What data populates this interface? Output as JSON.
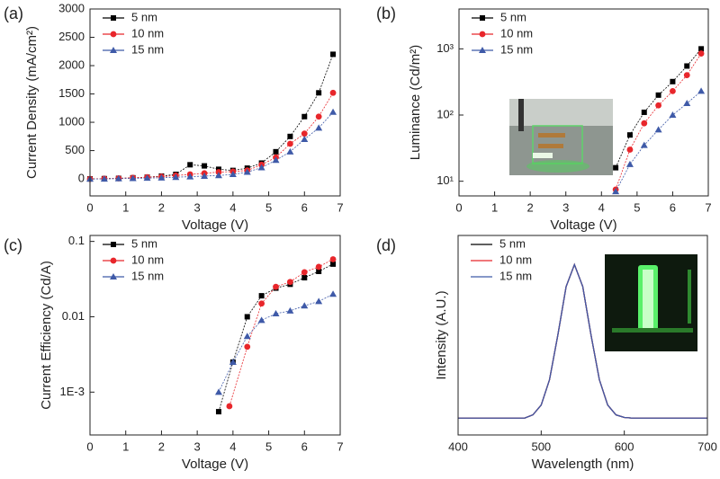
{
  "chart_data": [
    {
      "type": "line",
      "label": "(a)",
      "x_label": "Voltage (V)",
      "y_label": "Current Density (mA/cm²)",
      "x": [
        0,
        0.4,
        0.8,
        1.2,
        1.6,
        2.0,
        2.4,
        2.8,
        3.2,
        3.6,
        4.0,
        4.4,
        4.8,
        5.2,
        5.6,
        6.0,
        6.4,
        6.8
      ],
      "series": [
        {
          "name": "5 nm",
          "color": "#000000",
          "marker": "square",
          "values": [
            0,
            5,
            10,
            20,
            30,
            50,
            80,
            250,
            230,
            170,
            150,
            190,
            280,
            480,
            750,
            1100,
            1520,
            2200
          ]
        },
        {
          "name": "10 nm",
          "color": "#e8262b",
          "marker": "circle",
          "values": [
            0,
            5,
            10,
            20,
            30,
            40,
            60,
            80,
            100,
            120,
            130,
            150,
            250,
            380,
            620,
            800,
            1100,
            1520
          ]
        },
        {
          "name": "15 nm",
          "color": "#3f5aa8",
          "marker": "triangle",
          "values": [
            0,
            0,
            5,
            10,
            15,
            20,
            30,
            40,
            50,
            60,
            80,
            120,
            200,
            330,
            480,
            700,
            900,
            1180
          ]
        }
      ],
      "xlim": [
        0,
        7
      ],
      "xticks": [
        0,
        1,
        2,
        3,
        4,
        5,
        6,
        7
      ],
      "ylim": [
        -300,
        3000
      ],
      "yticks": [
        0,
        500,
        1000,
        1500,
        2000,
        2500,
        3000
      ],
      "legend": "upper left"
    },
    {
      "type": "line",
      "label": "(b)",
      "x_label": "Voltage (V)",
      "y_label": "Luminance (Cd/m²)",
      "log_y": true,
      "x": [
        4.4,
        4.8,
        5.2,
        5.6,
        6.0,
        6.4,
        6.8
      ],
      "series": [
        {
          "name": "5 nm",
          "color": "#000000",
          "marker": "square",
          "values": [
            16,
            50,
            110,
            200,
            320,
            550,
            1000
          ]
        },
        {
          "name": "10 nm",
          "color": "#e8262b",
          "marker": "circle",
          "values": [
            7.5,
            30,
            75,
            140,
            230,
            400,
            850
          ]
        },
        {
          "name": "15 nm",
          "color": "#3f5aa8",
          "marker": "triangle",
          "values": [
            7,
            18,
            35,
            60,
            100,
            150,
            230
          ]
        }
      ],
      "xlim": [
        0,
        7
      ],
      "xticks": [
        0,
        1,
        2,
        3,
        4,
        5,
        6,
        7
      ],
      "ylim": [
        6,
        4000
      ],
      "yticks": [
        {
          "value": 10,
          "label": "10¹"
        },
        {
          "value": 100,
          "label": "10²"
        },
        {
          "value": 1000,
          "label": "10³"
        }
      ],
      "legend": "upper left"
    },
    {
      "type": "line",
      "label": "(c)",
      "x_label": "Voltage (V)",
      "y_label": "Current Efficiency (Cd/A)",
      "log_y": true,
      "series": [
        {
          "name": "5 nm",
          "color": "#000000",
          "marker": "square",
          "x": [
            3.6,
            4.0,
            4.4,
            4.8,
            5.2,
            5.6,
            6.0,
            6.4,
            6.8
          ],
          "values": [
            0.00055,
            0.0025,
            0.01,
            0.019,
            0.024,
            0.027,
            0.033,
            0.04,
            0.05
          ]
        },
        {
          "name": "10 nm",
          "color": "#e8262b",
          "marker": "circle",
          "x": [
            3.9,
            4.4,
            4.8,
            5.2,
            5.6,
            6.0,
            6.4,
            6.8
          ],
          "values": [
            0.00065,
            0.004,
            0.015,
            0.025,
            0.029,
            0.039,
            0.046,
            0.058
          ]
        },
        {
          "name": "15 nm",
          "color": "#3f5aa8",
          "marker": "triangle",
          "x": [
            3.6,
            4.0,
            4.4,
            4.8,
            5.2,
            5.6,
            6.0,
            6.4,
            6.8
          ],
          "values": [
            0.001,
            0.0025,
            0.0055,
            0.009,
            0.011,
            0.012,
            0.014,
            0.016,
            0.02
          ]
        }
      ],
      "xlim": [
        0,
        7
      ],
      "xticks": [
        0,
        1,
        2,
        3,
        4,
        5,
        6,
        7
      ],
      "ylim": [
        0.00027,
        0.12
      ],
      "yticks": [
        {
          "value": 0.001,
          "label": "1E-3"
        },
        0.01,
        0.1
      ],
      "legend": "upper left"
    },
    {
      "type": "line",
      "label": "(d)",
      "x_label": "Wavelength (nm)",
      "y_label": "Intensity (A.U.)",
      "x": [
        400,
        410,
        420,
        430,
        440,
        450,
        460,
        470,
        480,
        490,
        500,
        510,
        520,
        530,
        540,
        550,
        560,
        570,
        580,
        590,
        600,
        610,
        620,
        630,
        640,
        650,
        660,
        670,
        680,
        690,
        700
      ],
      "series": [
        {
          "name": "5 nm",
          "color": "#000000",
          "values": [
            0,
            0,
            0,
            0,
            0,
            0,
            0,
            0,
            0,
            0.021,
            0.085,
            0.25,
            0.54,
            0.857,
            1,
            0.857,
            0.54,
            0.25,
            0.085,
            0.021,
            0.004,
            0,
            0,
            0,
            0,
            0,
            0,
            0,
            0,
            0,
            0
          ]
        },
        {
          "name": "10 nm",
          "color": "#e8262b",
          "values": [
            0,
            0,
            0,
            0,
            0,
            0,
            0,
            0,
            0,
            0.021,
            0.085,
            0.25,
            0.54,
            0.857,
            1,
            0.857,
            0.54,
            0.25,
            0.085,
            0.021,
            0.004,
            0,
            0,
            0,
            0,
            0,
            0,
            0,
            0,
            0,
            0
          ]
        },
        {
          "name": "15 nm",
          "color": "#3f5aa8",
          "values": [
            0,
            0,
            0,
            0,
            0,
            0,
            0,
            0,
            0,
            0.021,
            0.085,
            0.25,
            0.54,
            0.857,
            1,
            0.857,
            0.54,
            0.25,
            0.085,
            0.021,
            0.004,
            0,
            0,
            0,
            0,
            0,
            0,
            0,
            0,
            0,
            0
          ]
        }
      ],
      "xlim": [
        400,
        700
      ],
      "xticks": [
        400,
        500,
        600,
        700
      ],
      "ylim": [
        -0.11,
        1.19
      ],
      "legend": "upper left"
    }
  ]
}
